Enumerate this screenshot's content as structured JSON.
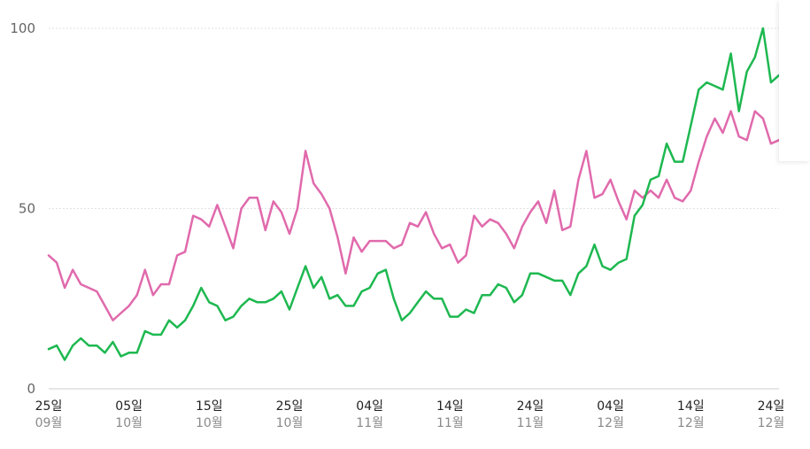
{
  "chart_data": {
    "type": "line",
    "title": "",
    "ylim": [
      0,
      100
    ],
    "yticks": [
      "100",
      "50",
      "0"
    ],
    "ytick_values": [
      100,
      50,
      0
    ],
    "grid": true,
    "x_tick_labels": [
      {
        "day": "25일",
        "month": "09월",
        "index": 0
      },
      {
        "day": "05일",
        "month": "10월",
        "index": 10
      },
      {
        "day": "15일",
        "month": "10월",
        "index": 20
      },
      {
        "day": "25일",
        "month": "10월",
        "index": 30
      },
      {
        "day": "04일",
        "month": "11월",
        "index": 40
      },
      {
        "day": "14일",
        "month": "11월",
        "index": 50
      },
      {
        "day": "24일",
        "month": "11월",
        "index": 60
      },
      {
        "day": "04일",
        "month": "12월",
        "index": 70
      },
      {
        "day": "14일",
        "month": "12월",
        "index": 80
      },
      {
        "day": "24일",
        "month": "12월",
        "index": 90
      }
    ],
    "series": [
      {
        "color": "#e06aac",
        "values": [
          37,
          35,
          28,
          33,
          29,
          28,
          27,
          23,
          19,
          21,
          23,
          26,
          33,
          26,
          29,
          29,
          37,
          38,
          48,
          47,
          45,
          51,
          45,
          39,
          50,
          53,
          53,
          44,
          52,
          49,
          43,
          50,
          66,
          57,
          54,
          50,
          42,
          32,
          42,
          38,
          41,
          41,
          41,
          39,
          40,
          46,
          45,
          49,
          43,
          39,
          40,
          35,
          37,
          48,
          45,
          47,
          46,
          43,
          39,
          45,
          49,
          52,
          46,
          55,
          44,
          45,
          58,
          66,
          53,
          54,
          58,
          52,
          47,
          55,
          53,
          55,
          53,
          58,
          53,
          52,
          55,
          63,
          70,
          75,
          71,
          77,
          70,
          69,
          77,
          75,
          68,
          69
        ]
      },
      {
        "color": "#1eb850",
        "values": [
          11,
          12,
          8,
          12,
          14,
          12,
          12,
          10,
          13,
          9,
          10,
          10,
          16,
          15,
          15,
          19,
          17,
          19,
          23,
          28,
          24,
          23,
          19,
          20,
          23,
          25,
          24,
          24,
          25,
          27,
          22,
          28,
          34,
          28,
          31,
          25,
          26,
          23,
          23,
          27,
          28,
          32,
          33,
          25,
          19,
          21,
          24,
          27,
          25,
          25,
          20,
          20,
          22,
          21,
          26,
          26,
          29,
          28,
          24,
          26,
          32,
          32,
          31,
          30,
          30,
          26,
          32,
          34,
          40,
          34,
          33,
          35,
          36,
          48,
          51,
          58,
          59,
          68,
          63,
          63,
          73,
          83,
          85,
          84,
          83,
          93,
          77,
          88,
          92,
          100,
          85,
          87
        ]
      }
    ]
  }
}
